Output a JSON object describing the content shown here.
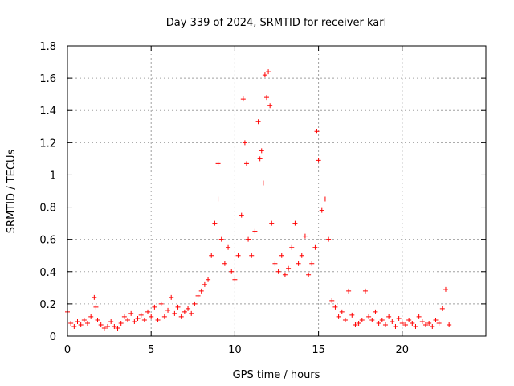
{
  "colors": {
    "series": "#ff0000",
    "grid": "#a0a0a0",
    "axis": "#000000",
    "background": "#ffffff"
  },
  "chart_data": {
    "type": "scatter",
    "title": "Day 339 of 2024, SRMTID for receiver karl",
    "xlabel": "GPS time / hours",
    "ylabel": "SRMTID / TECUs",
    "xlim": [
      0,
      25
    ],
    "ylim": [
      0,
      1.8
    ],
    "xticks": [
      0,
      5,
      10,
      15,
      20
    ],
    "xtick_labels": [
      "0",
      "5",
      "10",
      "15",
      "20"
    ],
    "yticks": [
      0,
      0.2,
      0.4,
      0.6,
      0.8,
      1.0,
      1.2,
      1.4,
      1.6,
      1.8
    ],
    "ytick_labels": [
      "0",
      "0.2",
      "0.4",
      "0.6",
      "0.8",
      "1",
      "1.2",
      "1.4",
      "1.6",
      "1.8"
    ],
    "grid": true,
    "marker": "+",
    "series": [
      {
        "name": "SRMTID",
        "x": [
          0.0,
          0.2,
          0.4,
          0.6,
          0.8,
          1.0,
          1.2,
          1.4,
          1.6,
          1.7,
          1.8,
          2.0,
          2.2,
          2.4,
          2.6,
          2.8,
          3.0,
          3.2,
          3.4,
          3.6,
          3.8,
          4.0,
          4.2,
          4.4,
          4.6,
          4.8,
          5.0,
          5.2,
          5.4,
          5.6,
          5.8,
          6.0,
          6.2,
          6.4,
          6.6,
          6.8,
          7.0,
          7.2,
          7.4,
          7.6,
          7.8,
          8.0,
          8.2,
          8.4,
          8.6,
          8.8,
          9.0,
          9.0,
          9.2,
          9.4,
          9.6,
          9.8,
          10.0,
          10.2,
          10.4,
          10.5,
          10.6,
          10.7,
          10.8,
          11.0,
          11.2,
          11.4,
          11.5,
          11.6,
          11.7,
          11.8,
          11.9,
          12.0,
          12.1,
          12.2,
          12.4,
          12.6,
          12.8,
          13.0,
          13.2,
          13.4,
          13.6,
          13.8,
          14.0,
          14.2,
          14.4,
          14.6,
          14.8,
          14.9,
          15.0,
          15.2,
          15.4,
          15.6,
          15.8,
          16.0,
          16.2,
          16.4,
          16.6,
          16.8,
          17.0,
          17.2,
          17.4,
          17.6,
          17.8,
          18.0,
          18.2,
          18.4,
          18.6,
          18.8,
          19.0,
          19.2,
          19.4,
          19.6,
          19.8,
          20.0,
          20.2,
          20.4,
          20.6,
          20.8,
          21.0,
          21.2,
          21.4,
          21.6,
          21.8,
          22.0,
          22.2,
          22.4,
          22.6,
          22.8
        ],
        "y": [
          0.15,
          0.08,
          0.06,
          0.09,
          0.07,
          0.1,
          0.08,
          0.12,
          0.24,
          0.18,
          0.1,
          0.07,
          0.05,
          0.06,
          0.09,
          0.06,
          0.05,
          0.08,
          0.12,
          0.1,
          0.14,
          0.09,
          0.11,
          0.13,
          0.1,
          0.15,
          0.12,
          0.18,
          0.1,
          0.2,
          0.12,
          0.16,
          0.24,
          0.14,
          0.18,
          0.12,
          0.15,
          0.17,
          0.14,
          0.2,
          0.25,
          0.28,
          0.32,
          0.35,
          0.5,
          0.7,
          1.07,
          0.85,
          0.6,
          0.45,
          0.55,
          0.4,
          0.35,
          0.5,
          0.75,
          1.47,
          1.2,
          1.07,
          0.6,
          0.5,
          0.65,
          1.33,
          1.1,
          1.15,
          0.95,
          1.62,
          1.48,
          1.64,
          1.43,
          0.7,
          0.45,
          0.4,
          0.5,
          0.38,
          0.42,
          0.55,
          0.7,
          0.45,
          0.5,
          0.62,
          0.38,
          0.45,
          0.55,
          1.27,
          1.09,
          0.78,
          0.85,
          0.6,
          0.22,
          0.18,
          0.12,
          0.15,
          0.1,
          0.28,
          0.13,
          0.07,
          0.08,
          0.1,
          0.28,
          0.12,
          0.1,
          0.15,
          0.08,
          0.1,
          0.07,
          0.12,
          0.09,
          0.06,
          0.11,
          0.08,
          0.07,
          0.1,
          0.08,
          0.06,
          0.12,
          0.09,
          0.07,
          0.08,
          0.06,
          0.1,
          0.08,
          0.17,
          0.29,
          0.07
        ]
      }
    ]
  }
}
